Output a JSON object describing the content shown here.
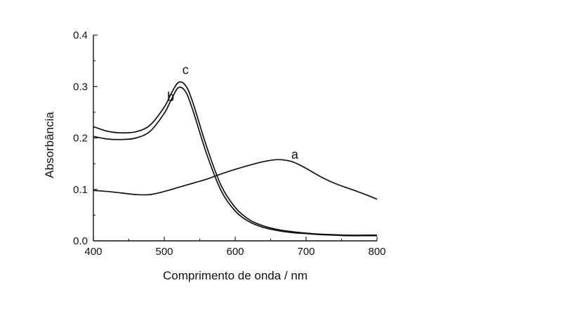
{
  "chart_data": {
    "type": "line",
    "title": "",
    "xlabel": "Comprimento de onda / nm",
    "ylabel": "Absorbância",
    "xlim": [
      400,
      800
    ],
    "ylim": [
      0.0,
      0.4
    ],
    "x_ticks": [
      "400",
      "500",
      "600",
      "700",
      "800"
    ],
    "y_ticks": [
      "0.0",
      "0.1",
      "0.2",
      "0.3",
      "0.4"
    ],
    "grid": false,
    "legend": "none",
    "series": [
      {
        "name": "a",
        "x": [
          400,
          420,
          440,
          460,
          480,
          500,
          520,
          540,
          560,
          580,
          600,
          620,
          640,
          660,
          680,
          700,
          720,
          740,
          760,
          780,
          800
        ],
        "y": [
          0.098,
          0.096,
          0.093,
          0.09,
          0.09,
          0.096,
          0.104,
          0.112,
          0.12,
          0.13,
          0.139,
          0.147,
          0.154,
          0.158,
          0.154,
          0.141,
          0.125,
          0.112,
          0.102,
          0.092,
          0.081
        ]
      },
      {
        "name": "b",
        "x": [
          400,
          420,
          440,
          460,
          480,
          500,
          510,
          520,
          530,
          540,
          560,
          580,
          600,
          620,
          640,
          660,
          680,
          700,
          720,
          740,
          760,
          780,
          800
        ],
        "y": [
          0.203,
          0.198,
          0.197,
          0.2,
          0.213,
          0.248,
          0.275,
          0.298,
          0.29,
          0.255,
          0.168,
          0.098,
          0.058,
          0.037,
          0.026,
          0.02,
          0.016,
          0.014,
          0.012,
          0.011,
          0.01,
          0.01,
          0.01
        ]
      },
      {
        "name": "c",
        "x": [
          400,
          420,
          440,
          460,
          480,
          500,
          510,
          520,
          530,
          540,
          560,
          580,
          600,
          620,
          640,
          660,
          680,
          700,
          720,
          740,
          760,
          780,
          800
        ],
        "y": [
          0.222,
          0.213,
          0.21,
          0.212,
          0.225,
          0.26,
          0.287,
          0.308,
          0.302,
          0.27,
          0.182,
          0.108,
          0.065,
          0.041,
          0.029,
          0.022,
          0.018,
          0.015,
          0.013,
          0.012,
          0.011,
          0.011,
          0.011
        ]
      }
    ],
    "annotations": [
      {
        "text": "a",
        "x": 684,
        "y": 0.16
      },
      {
        "text": "b",
        "x": 509,
        "y": 0.272
      },
      {
        "text": "c",
        "x": 530,
        "y": 0.324
      }
    ]
  }
}
